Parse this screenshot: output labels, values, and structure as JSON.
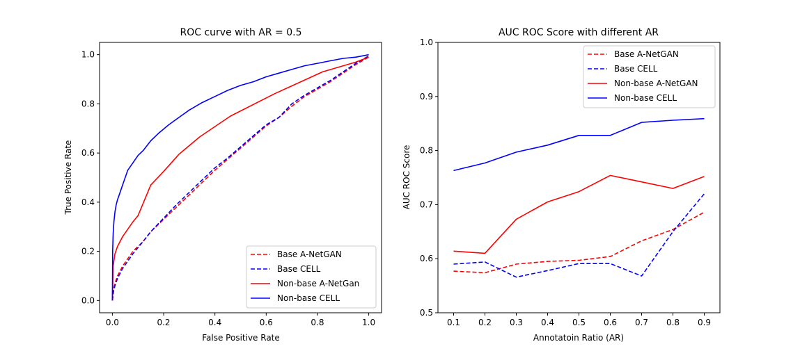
{
  "chart_data": [
    {
      "type": "line",
      "title": "ROC curve with AR = 0.5",
      "xlabel": "False Positive Rate",
      "ylabel": "True Positive Rate",
      "xlim": [
        -0.05,
        1.05
      ],
      "ylim": [
        -0.05,
        1.05
      ],
      "xticks": [
        0.0,
        0.2,
        0.4,
        0.6,
        0.8,
        1.0
      ],
      "yticks": [
        0.0,
        0.2,
        0.4,
        0.6,
        0.8,
        1.0
      ],
      "tick_labels_x": [
        "0.0",
        "0.2",
        "0.4",
        "0.6",
        "0.8",
        "1.0"
      ],
      "tick_labels_y": [
        "0.0",
        "0.2",
        "0.4",
        "0.6",
        "0.8",
        "1.0"
      ],
      "grid": false,
      "legend_position": "lower-right",
      "series": [
        {
          "name": "Base A-NetGAN",
          "color": "#ff0000",
          "dash": true,
          "x": [
            0,
            0.005,
            0.01,
            0.02,
            0.04,
            0.06,
            0.08,
            0.1,
            0.12,
            0.15,
            0.2,
            0.25,
            0.3,
            0.35,
            0.4,
            0.45,
            0.5,
            0.55,
            0.6,
            0.65,
            0.7,
            0.75,
            0.8,
            0.85,
            0.9,
            0.95,
            1.0
          ],
          "y": [
            0,
            0.05,
            0.07,
            0.1,
            0.14,
            0.17,
            0.2,
            0.22,
            0.24,
            0.28,
            0.33,
            0.38,
            0.43,
            0.48,
            0.53,
            0.575,
            0.62,
            0.665,
            0.71,
            0.745,
            0.79,
            0.83,
            0.86,
            0.89,
            0.925,
            0.96,
            0.99
          ]
        },
        {
          "name": "Base CELL",
          "color": "#0000ff",
          "dash": true,
          "x": [
            0,
            0.005,
            0.01,
            0.02,
            0.04,
            0.06,
            0.08,
            0.1,
            0.12,
            0.15,
            0.2,
            0.25,
            0.3,
            0.35,
            0.4,
            0.45,
            0.5,
            0.55,
            0.6,
            0.65,
            0.7,
            0.75,
            0.8,
            0.85,
            0.9,
            0.95,
            1.0
          ],
          "y": [
            0,
            0.04,
            0.06,
            0.09,
            0.13,
            0.16,
            0.19,
            0.215,
            0.24,
            0.28,
            0.335,
            0.39,
            0.44,
            0.49,
            0.54,
            0.58,
            0.625,
            0.67,
            0.715,
            0.745,
            0.8,
            0.835,
            0.865,
            0.895,
            0.93,
            0.965,
            0.995
          ]
        },
        {
          "name": "Non-base A-NetGan",
          "color": "#ff0000",
          "dash": false,
          "x": [
            0,
            0.003,
            0.01,
            0.02,
            0.04,
            0.06,
            0.08,
            0.1,
            0.15,
            0.2,
            0.26,
            0.34,
            0.46,
            0.63,
            0.82,
            0.95,
            1.0
          ],
          "y": [
            0,
            0.14,
            0.19,
            0.22,
            0.26,
            0.29,
            0.32,
            0.345,
            0.47,
            0.525,
            0.595,
            0.665,
            0.75,
            0.84,
            0.93,
            0.97,
            0.99
          ]
        },
        {
          "name": "Non-base CELL",
          "color": "#0000ff",
          "dash": false,
          "x": [
            0,
            0.001,
            0.003,
            0.006,
            0.01,
            0.015,
            0.02,
            0.03,
            0.04,
            0.05,
            0.06,
            0.07,
            0.08,
            0.1,
            0.12,
            0.15,
            0.18,
            0.22,
            0.26,
            0.3,
            0.35,
            0.4,
            0.45,
            0.5,
            0.55,
            0.6,
            0.65,
            0.7,
            0.75,
            0.8,
            0.85,
            0.9,
            0.95,
            1.0
          ],
          "y": [
            0,
            0.2,
            0.27,
            0.32,
            0.36,
            0.39,
            0.41,
            0.44,
            0.47,
            0.5,
            0.53,
            0.545,
            0.56,
            0.59,
            0.61,
            0.65,
            0.68,
            0.715,
            0.745,
            0.775,
            0.805,
            0.83,
            0.855,
            0.875,
            0.89,
            0.91,
            0.925,
            0.94,
            0.955,
            0.965,
            0.975,
            0.985,
            0.99,
            1.0
          ]
        }
      ]
    },
    {
      "type": "line",
      "title": "AUC ROC Score with different AR",
      "xlabel": "Annotatoin Ratio (AR)",
      "ylabel": "AUC ROC Score",
      "xlim": [
        0.05,
        0.95
      ],
      "ylim": [
        0.5,
        1.0
      ],
      "xticks": [
        0.1,
        0.2,
        0.3,
        0.4,
        0.5,
        0.6,
        0.7,
        0.8,
        0.9
      ],
      "yticks": [
        0.5,
        0.6,
        0.7,
        0.8,
        0.9,
        1.0
      ],
      "tick_labels_x": [
        "0.1",
        "0.2",
        "0.3",
        "0.4",
        "0.5",
        "0.6",
        "0.7",
        "0.8",
        "0.9"
      ],
      "tick_labels_y": [
        "0.5",
        "0.6",
        "0.7",
        "0.8",
        "0.9",
        "1.0"
      ],
      "grid": false,
      "legend_position": "upper-right",
      "x": [
        0.1,
        0.2,
        0.3,
        0.4,
        0.5,
        0.6,
        0.7,
        0.8,
        0.9
      ],
      "series": [
        {
          "name": "Base A-NetGAN",
          "color": "#ff0000",
          "dash": true,
          "values": [
            0.577,
            0.574,
            0.59,
            0.595,
            0.597,
            0.604,
            0.633,
            0.654,
            0.686
          ]
        },
        {
          "name": "Base CELL",
          "color": "#0000ff",
          "dash": true,
          "values": [
            0.59,
            0.594,
            0.566,
            0.578,
            0.591,
            0.591,
            0.568,
            0.65,
            0.72
          ]
        },
        {
          "name": "Non-base A-NetGAN",
          "color": "#ff0000",
          "dash": false,
          "values": [
            0.614,
            0.61,
            0.673,
            0.705,
            0.724,
            0.754,
            0.742,
            0.73,
            0.752
          ]
        },
        {
          "name": "Non-base CELL",
          "color": "#0000ff",
          "dash": false,
          "values": [
            0.763,
            0.777,
            0.797,
            0.81,
            0.828,
            0.828,
            0.852,
            0.856,
            0.859
          ]
        }
      ]
    }
  ]
}
